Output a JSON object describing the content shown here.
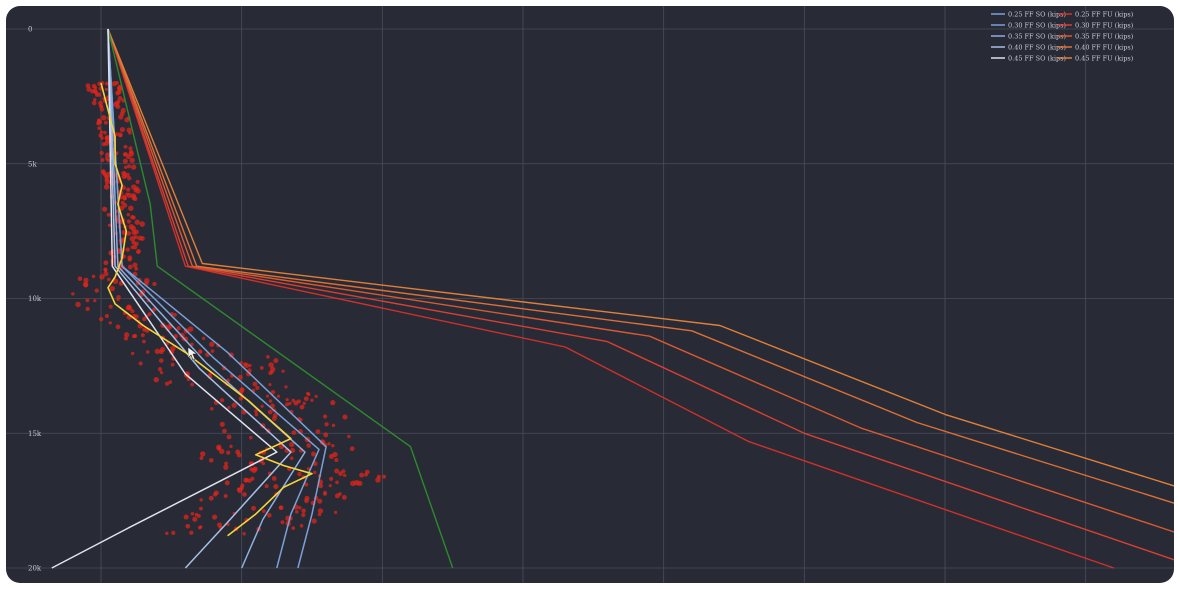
{
  "colors": {
    "background": "#282a36",
    "grid": "#4a4d5c",
    "scatter": "#e0261b",
    "measured": "#f5d53a",
    "so_series": [
      "#7aa0d8",
      "#7aa0d8",
      "#8cb0e0",
      "#a8c0e8",
      "#dde2ee"
    ],
    "fu_series": [
      "#d0302a",
      "#d84030",
      "#d85a30",
      "#dc7035",
      "#e08038"
    ],
    "green": "#2d8a2d"
  },
  "chart_data": {
    "type": "line",
    "title": "",
    "xlabel": "",
    "ylabel": "",
    "ylim": [
      0,
      20000
    ],
    "xlim": [
      0,
      7.5
    ],
    "y_inverted": true,
    "grid": true,
    "legend_placement": "top-right",
    "yticks": [
      {
        "value": 0,
        "label": "0"
      },
      {
        "value": 5000,
        "label": "5k"
      },
      {
        "value": 10000,
        "label": "10k"
      },
      {
        "value": 15000,
        "label": "15k"
      },
      {
        "value": 20000,
        "label": "20k"
      }
    ],
    "xgrid": [
      0,
      1,
      2,
      3,
      4,
      5,
      6,
      7
    ],
    "legend": [
      {
        "so": "0.25 FF SO (kips)",
        "fu": "0.25 FF FU (kips)"
      },
      {
        "so": "0.30 FF SO (kips)",
        "fu": "0.30 FF FU (kips)"
      },
      {
        "so": "0.35 FF SO (kips)",
        "fu": "0.35 FF FU (kips)"
      },
      {
        "so": "0.40 FF SO (kips)",
        "fu": "0.40 FF FU (kips)"
      },
      {
        "so": "0.45 FF SO (kips)",
        "fu": "0.45 FF FU (kips)"
      }
    ],
    "series_so": [
      {
        "x": [
          0.05,
          0.15,
          0.9,
          1.6,
          1.5,
          1.4
        ],
        "y": [
          0,
          8800,
          12000,
          15500,
          18000,
          20000
        ]
      },
      {
        "x": [
          0.05,
          0.15,
          0.8,
          1.55,
          1.35,
          1.25
        ],
        "y": [
          0,
          8800,
          12200,
          15600,
          18000,
          20000
        ]
      },
      {
        "x": [
          0.05,
          0.12,
          0.75,
          1.45,
          1.15,
          1.0
        ],
        "y": [
          0,
          8800,
          12400,
          15700,
          18200,
          20000
        ]
      },
      {
        "x": [
          0.05,
          0.1,
          0.7,
          1.35,
          0.9,
          0.6
        ],
        "y": [
          0,
          8800,
          12600,
          15700,
          18300,
          20000
        ]
      },
      {
        "x": [
          0.05,
          0.08,
          0.6,
          1.25,
          0.2,
          -0.35
        ],
        "y": [
          0,
          8800,
          12800,
          15700,
          18500,
          20000
        ]
      }
    ],
    "series_fu": [
      {
        "x": [
          0.05,
          0.6,
          3.3,
          4.6,
          7.2
        ],
        "y": [
          0,
          8800,
          11800,
          15300,
          20000
        ]
      },
      {
        "x": [
          0.05,
          0.62,
          3.6,
          5.0,
          7.8
        ],
        "y": [
          0,
          8800,
          11600,
          15000,
          20000
        ]
      },
      {
        "x": [
          0.05,
          0.65,
          3.9,
          5.4,
          8.4
        ],
        "y": [
          0,
          8800,
          11400,
          14800,
          20000
        ]
      },
      {
        "x": [
          0.05,
          0.68,
          4.2,
          5.8,
          9.1
        ],
        "y": [
          0,
          8800,
          11200,
          14600,
          20000
        ]
      },
      {
        "x": [
          0.05,
          0.72,
          4.4,
          6.0,
          9.5
        ],
        "y": [
          0,
          8700,
          11000,
          14300,
          20000
        ]
      }
    ],
    "series_green": {
      "x": [
        0.05,
        0.35,
        0.4,
        2.2,
        2.5
      ],
      "y": [
        0,
        6500,
        8800,
        15500,
        20000
      ]
    },
    "series_measured": {
      "x": [
        0.0,
        0.05,
        0.1,
        0.1,
        0.15,
        0.12,
        0.18,
        0.15,
        0.1,
        0.05,
        0.1,
        0.3,
        0.6,
        0.7,
        0.9,
        1.05,
        1.2,
        1.35,
        1.1,
        1.3,
        1.5,
        1.3,
        1.1,
        0.9
      ],
      "y": [
        2000,
        3000,
        4000,
        5000,
        5800,
        6500,
        7500,
        8500,
        9200,
        9600,
        10200,
        11000,
        12000,
        12400,
        13200,
        13800,
        14500,
        15200,
        15800,
        16200,
        16500,
        17000,
        18000,
        18800
      ]
    }
  }
}
